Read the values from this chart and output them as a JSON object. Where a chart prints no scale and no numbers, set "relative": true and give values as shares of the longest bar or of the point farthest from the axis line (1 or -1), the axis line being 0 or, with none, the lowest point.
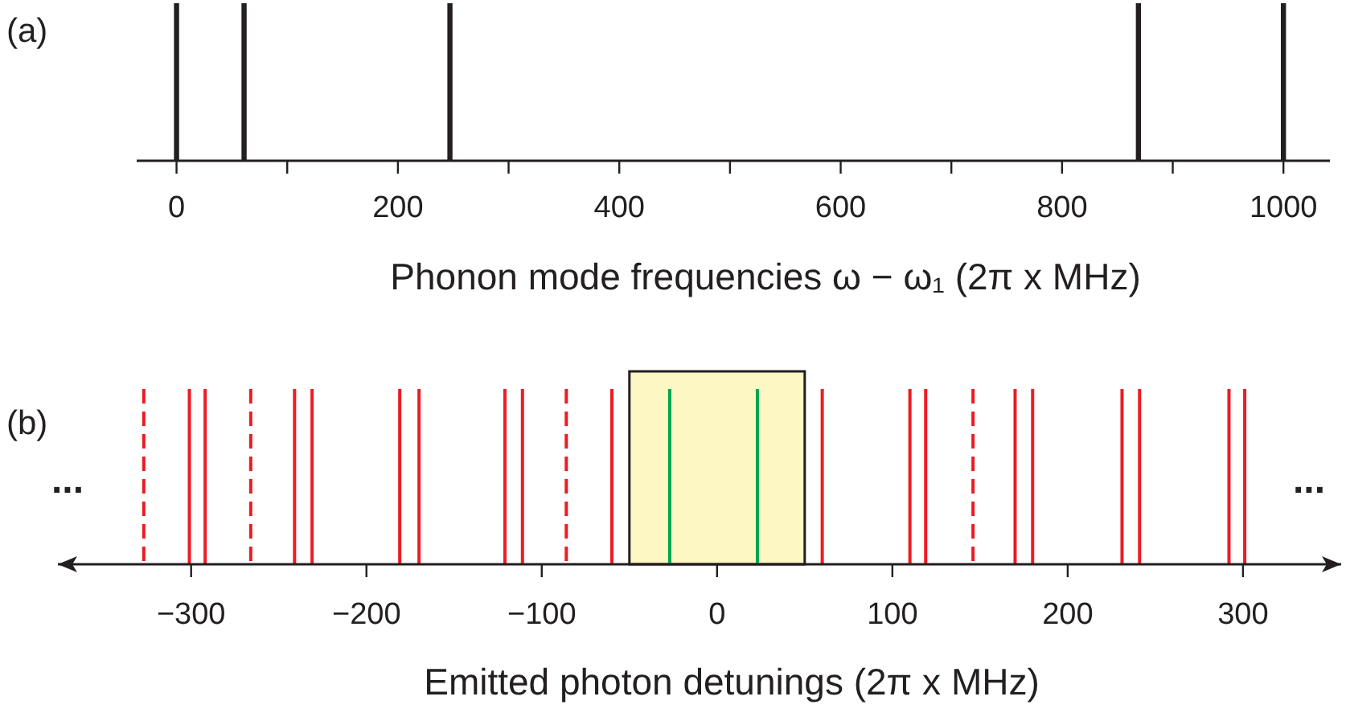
{
  "chart_data": [
    {
      "type": "bar",
      "title": "(a)",
      "xlabel": "Phonon mode frequencies ω − ω₁ (2π x MHz)",
      "relative": true,
      "x": [
        0,
        61,
        247,
        869,
        1000
      ],
      "values": [
        1,
        1,
        1,
        1,
        1
      ],
      "color": "#231f20",
      "xlim": [
        -36,
        1042
      ],
      "xticks": [
        0,
        {
          "value": 100,
          "label": null
        },
        200,
        {
          "value": 300,
          "label": null
        },
        400,
        {
          "value": 500,
          "label": null
        },
        600,
        {
          "value": 700,
          "label": null
        },
        800,
        {
          "value": 900,
          "label": null
        },
        1000
      ]
    },
    {
      "type": "bar",
      "title": "(b)",
      "xlabel": "Emitted photon detunings (2π x MHz)",
      "relative": true,
      "xlim": [
        -376,
        356
      ],
      "xticks": [
        {
          "value": -300,
          "label": "−300"
        },
        {
          "value": -200,
          "label": "−200"
        },
        {
          "value": -100,
          "label": "−100"
        },
        0,
        100,
        200,
        300
      ],
      "series": [
        {
          "color": "#ed1c24",
          "x": [
            -301,
            -292,
            -241,
            -231,
            -181,
            -170,
            -121,
            -111,
            -60,
            60,
            110,
            119,
            170,
            180,
            231,
            241,
            292,
            301
          ],
          "values": [
            1,
            1,
            1,
            1,
            1,
            1,
            1,
            1,
            1,
            1,
            1,
            1,
            1,
            1,
            1,
            1,
            1,
            1
          ]
        },
        {
          "color": "#ed1c24",
          "line_style": "dashed",
          "x": [
            -327,
            -266,
            -86,
            146
          ],
          "values": [
            1,
            1,
            1,
            1
          ]
        },
        {
          "color": "#00a651",
          "x": [
            -27,
            23
          ],
          "values": [
            1,
            1
          ]
        }
      ],
      "bands": [
        {
          "axis": "x",
          "from": -50,
          "to": 50,
          "color": "#fdf8c3"
        }
      ],
      "annotations": [
        "...",
        "..."
      ]
    }
  ]
}
